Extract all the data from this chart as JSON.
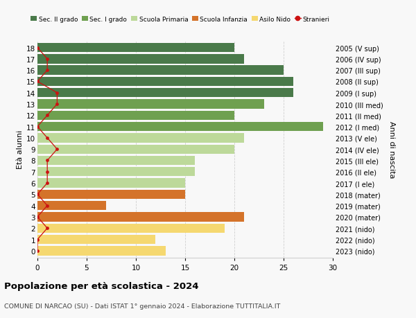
{
  "ages": [
    18,
    17,
    16,
    15,
    14,
    13,
    12,
    11,
    10,
    9,
    8,
    7,
    6,
    5,
    4,
    3,
    2,
    1,
    0
  ],
  "right_labels": [
    "2005 (V sup)",
    "2006 (IV sup)",
    "2007 (III sup)",
    "2008 (II sup)",
    "2009 (I sup)",
    "2010 (III med)",
    "2011 (II med)",
    "2012 (I med)",
    "2013 (V ele)",
    "2014 (IV ele)",
    "2015 (III ele)",
    "2016 (II ele)",
    "2017 (I ele)",
    "2018 (mater)",
    "2019 (mater)",
    "2020 (mater)",
    "2021 (nido)",
    "2022 (nido)",
    "2023 (nido)"
  ],
  "bar_values": [
    20,
    21,
    25,
    26,
    26,
    23,
    20,
    29,
    21,
    20,
    16,
    16,
    15,
    15,
    7,
    21,
    19,
    12,
    13
  ],
  "stranieri_values": [
    0,
    1,
    1,
    0,
    2,
    2,
    1,
    0,
    1,
    2,
    1,
    1,
    1,
    0,
    1,
    0,
    1,
    0,
    0
  ],
  "bar_colors": [
    "#4a7a4a",
    "#4a7a4a",
    "#4a7a4a",
    "#4a7a4a",
    "#4a7a4a",
    "#6fa050",
    "#6fa050",
    "#6fa050",
    "#bdd99a",
    "#bdd99a",
    "#bdd99a",
    "#bdd99a",
    "#bdd99a",
    "#d4732a",
    "#d4732a",
    "#d4732a",
    "#f5d870",
    "#f5d870",
    "#f5d870"
  ],
  "legend_labels": [
    "Sec. II grado",
    "Sec. I grado",
    "Scuola Primaria",
    "Scuola Infanzia",
    "Asilo Nido",
    "Stranieri"
  ],
  "legend_colors": [
    "#4a7a4a",
    "#6fa050",
    "#bdd99a",
    "#d4732a",
    "#f5d870",
    "#cc1111"
  ],
  "stranieri_color": "#cc1111",
  "title": "Popolazione per età scolastica - 2024",
  "subtitle": "COMUNE DI NARCAO (SU) - Dati ISTAT 1° gennaio 2024 - Elaborazione TUTTITALIA.IT",
  "ylabel_left": "Età alunni",
  "ylabel_right": "Anni di nascita",
  "xlim": [
    0,
    30
  ],
  "background_color": "#f8f8f8",
  "grid_color": "#d0d0d0"
}
